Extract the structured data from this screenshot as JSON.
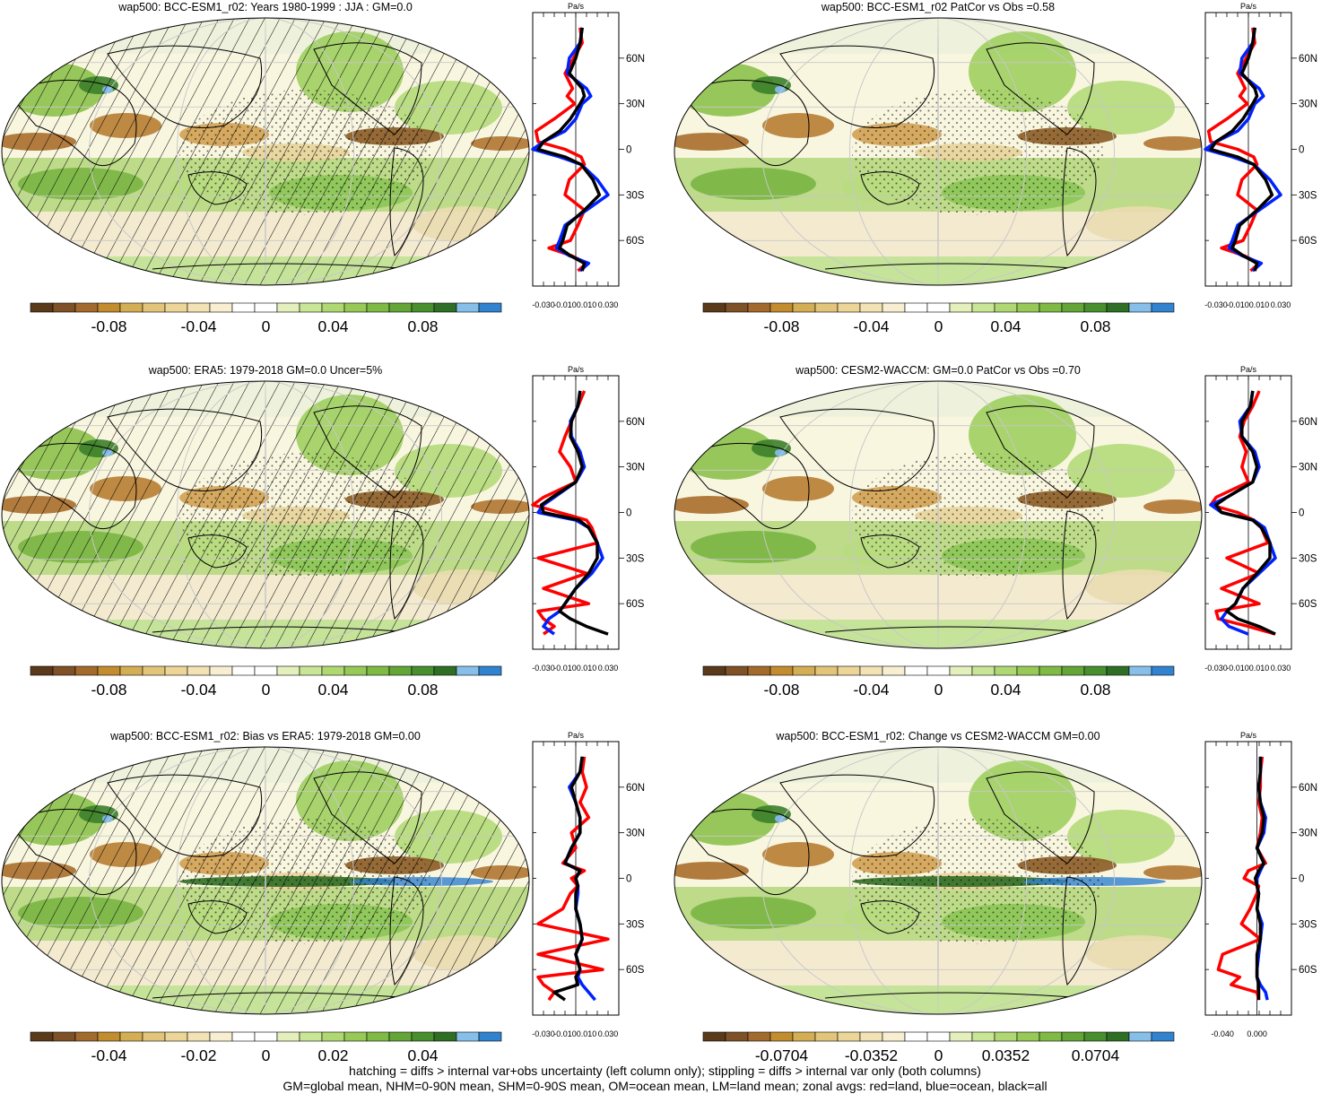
{
  "colors": {
    "scale": [
      "#5a3a1a",
      "#7e5226",
      "#a36a2e",
      "#c38c2e",
      "#d4ae55",
      "#e2c47a",
      "#ecd597",
      "#f2e2b4",
      "#f8efd3",
      "#ffffff",
      "#ffffff",
      "#e4f0bc",
      "#c9e596",
      "#b0d872",
      "#96c956",
      "#7fba44",
      "#63a637",
      "#488f2e",
      "#2f6e25",
      "#86c0ea",
      "#3182cf"
    ],
    "land_line": "#ff0000",
    "ocean_line": "#0022ff",
    "all_line": "#000000"
  },
  "zonal_axis": {
    "unit": "Pa/s",
    "lat_ticks": [
      "60N",
      "30N",
      "0",
      "30S",
      "60S"
    ]
  },
  "panels": [
    {
      "id": "model",
      "title": "wap500: BCC-ESM1_r02: Years 1980-1999 : JJA : GM=0.0",
      "hatch": true,
      "colorbar_labels": [
        "-0.08",
        "-0.04",
        "0",
        "0.04",
        "0.08"
      ],
      "zonal_ticks": [
        "-0.030",
        "-0.010",
        "0.010",
        "0.030"
      ]
    },
    {
      "id": "model-vs-obs",
      "title": "wap500: BCC-ESM1_r02 PatCor vs Obs =0.58",
      "hatch": false,
      "colorbar_labels": [
        "-0.08",
        "-0.04",
        "0",
        "0.04",
        "0.08"
      ],
      "zonal_ticks": [
        "-0.030",
        "-0.010",
        "0.010",
        "0.030"
      ]
    },
    {
      "id": "obs",
      "title": "wap500: ERA5: 1979-2018 GM=0.0 Uncer=5%",
      "hatch": true,
      "colorbar_labels": [
        "-0.08",
        "-0.04",
        "0",
        "0.04",
        "0.08"
      ],
      "zonal_ticks": [
        "-0.030",
        "-0.010",
        "0.010",
        "0.030"
      ]
    },
    {
      "id": "reference-model",
      "title": "wap500: CESM2-WACCM: GM=0.0 PatCor vs Obs =0.70",
      "hatch": false,
      "colorbar_labels": [
        "-0.08",
        "-0.04",
        "0",
        "0.04",
        "0.08"
      ],
      "zonal_ticks": [
        "-0.030",
        "-0.010",
        "0.010",
        "0.030"
      ]
    },
    {
      "id": "bias",
      "title": "wap500: BCC-ESM1_r02: Bias vs ERA5: 1979-2018 GM=0.00",
      "hatch": true,
      "colorbar_labels": [
        "-0.04",
        "-0.02",
        "0",
        "0.02",
        "0.04"
      ],
      "zonal_ticks": [
        "-0.030",
        "-0.010",
        "0.010",
        "0.030"
      ]
    },
    {
      "id": "change",
      "title": "wap500: BCC-ESM1_r02: Change vs CESM2-WACCM GM=0.00",
      "hatch": false,
      "colorbar_labels": [
        "-0.0704",
        "-0.0352",
        "0",
        "0.0352",
        "0.0704"
      ],
      "zonal_ticks": [
        "-0.040",
        "0.000"
      ]
    }
  ],
  "footer": {
    "line1": "hatching = diffs > internal var+obs uncertainty (left column only); stippling = diffs > internal var only (both columns)",
    "line2": "GM=global mean, NHM=0-90N mean, SHM=0-90S mean, OM=ocean mean, LM=land mean; zonal avgs: red=land, blue=ocean, black=all"
  },
  "chart_data": [
    {
      "type": "line",
      "title": "wap500: BCC-ESM1_r02: Years 1980-1999 : JJA : GM=0.0",
      "xlabel": "Pa/s",
      "xlim": [
        -0.04,
        0.04
      ],
      "ylim": [
        -90,
        90
      ],
      "y": [
        80,
        70,
        60,
        50,
        40,
        35,
        30,
        20,
        12,
        5,
        0,
        -5,
        -10,
        -20,
        -30,
        -40,
        -50,
        -60,
        -65,
        -70,
        -75,
        -80
      ],
      "series": [
        {
          "name": "red=land",
          "color": "#ff0000",
          "values": [
            0.004,
            0.006,
            -0.002,
            -0.01,
            -0.003,
            -0.008,
            -0.001,
            -0.02,
            -0.037,
            -0.035,
            -0.01,
            0.005,
            0.008,
            -0.006,
            -0.01,
            0.008,
            0.002,
            -0.005,
            -0.025,
            -0.004,
            0.01,
            0.002
          ]
        },
        {
          "name": "blue=ocean",
          "color": "#0022ff",
          "values": [
            0.006,
            0.004,
            -0.006,
            -0.008,
            0.01,
            0.014,
            0.006,
            0.0,
            -0.01,
            -0.03,
            -0.04,
            -0.015,
            0.005,
            0.02,
            0.03,
            0.01,
            -0.01,
            -0.015,
            -0.018,
            -0.006,
            0.012,
            0.004
          ]
        },
        {
          "name": "black=all",
          "color": "#000000",
          "values": [
            0.006,
            0.004,
            0.0,
            -0.006,
            0.006,
            0.008,
            0.004,
            -0.005,
            -0.015,
            -0.03,
            -0.035,
            -0.01,
            0.005,
            0.016,
            0.022,
            0.008,
            -0.008,
            -0.012,
            -0.015,
            -0.005,
            0.008,
            0.006
          ]
        }
      ]
    },
    {
      "type": "line",
      "title": "wap500: BCC-ESM1_r02 PatCor vs Obs =0.58",
      "xlabel": "Pa/s",
      "xlim": [
        -0.04,
        0.04
      ],
      "ylim": [
        -90,
        90
      ],
      "y": [
        80,
        70,
        60,
        50,
        40,
        35,
        30,
        20,
        12,
        5,
        0,
        -5,
        -10,
        -20,
        -30,
        -40,
        -50,
        -60,
        -65,
        -70,
        -75,
        -80
      ],
      "series": [
        {
          "name": "red=land",
          "color": "#ff0000",
          "values": [
            0.004,
            0.006,
            -0.002,
            -0.01,
            -0.003,
            -0.008,
            -0.001,
            -0.02,
            -0.037,
            -0.035,
            -0.01,
            0.005,
            0.008,
            -0.006,
            -0.01,
            0.008,
            0.002,
            -0.005,
            -0.025,
            -0.004,
            0.01,
            0.002
          ]
        },
        {
          "name": "blue=ocean",
          "color": "#0022ff",
          "values": [
            0.006,
            0.004,
            -0.006,
            -0.008,
            0.01,
            0.014,
            0.006,
            0.0,
            -0.01,
            -0.03,
            -0.04,
            -0.015,
            0.005,
            0.02,
            0.03,
            0.01,
            -0.01,
            -0.015,
            -0.018,
            -0.006,
            0.012,
            0.004
          ]
        },
        {
          "name": "black=all",
          "color": "#000000",
          "values": [
            0.006,
            0.004,
            0.0,
            -0.006,
            0.006,
            0.008,
            0.004,
            -0.005,
            -0.015,
            -0.03,
            -0.035,
            -0.01,
            0.005,
            0.016,
            0.022,
            0.008,
            -0.008,
            -0.012,
            -0.015,
            -0.005,
            0.008,
            0.006
          ]
        }
      ]
    },
    {
      "type": "line",
      "title": "wap500: ERA5: 1979-2018 GM=0.0 Uncer=5%",
      "xlabel": "Pa/s",
      "xlim": [
        -0.04,
        0.04
      ],
      "ylim": [
        -90,
        90
      ],
      "y": [
        80,
        70,
        60,
        50,
        40,
        30,
        20,
        10,
        5,
        0,
        -5,
        -10,
        -20,
        -30,
        -40,
        -50,
        -60,
        -65,
        -70,
        -75,
        -80
      ],
      "series": [
        {
          "name": "red=land",
          "color": "#ff0000",
          "values": [
            0.008,
            0.002,
            -0.004,
            -0.01,
            -0.015,
            -0.005,
            0.0,
            -0.03,
            -0.04,
            -0.015,
            0.01,
            0.015,
            0.02,
            -0.035,
            0.01,
            -0.03,
            0.012,
            -0.035,
            -0.03,
            -0.02,
            -0.03
          ]
        },
        {
          "name": "blue=ocean",
          "color": "#0022ff",
          "values": [
            0.004,
            0.002,
            -0.005,
            -0.004,
            0.004,
            0.008,
            0.0,
            -0.02,
            -0.03,
            -0.035,
            0.0,
            0.012,
            0.02,
            0.025,
            0.015,
            0.0,
            -0.01,
            -0.015,
            -0.025,
            -0.03,
            -0.02
          ]
        },
        {
          "name": "black=all",
          "color": "#000000",
          "values": [
            0.004,
            0.002,
            -0.004,
            -0.005,
            0.002,
            0.006,
            0.0,
            -0.022,
            -0.032,
            -0.03,
            0.003,
            0.012,
            0.02,
            0.02,
            0.012,
            0.0,
            -0.01,
            -0.015,
            -0.005,
            0.01,
            0.03
          ]
        }
      ]
    },
    {
      "type": "line",
      "title": "wap500: CESM2-WACCM: GM=0.0 PatCor vs Obs =0.70",
      "xlabel": "Pa/s",
      "xlim": [
        -0.04,
        0.04
      ],
      "ylim": [
        -90,
        90
      ],
      "y": [
        80,
        70,
        60,
        50,
        40,
        30,
        20,
        10,
        5,
        0,
        -5,
        -10,
        -20,
        -30,
        -40,
        -50,
        -60,
        -65,
        -70,
        -75,
        -80
      ],
      "series": [
        {
          "name": "red=land",
          "color": "#ff0000",
          "values": [
            0.01,
            0.004,
            -0.004,
            -0.008,
            -0.002,
            -0.006,
            0.0,
            -0.03,
            -0.035,
            -0.01,
            0.005,
            0.012,
            0.018,
            -0.02,
            0.01,
            -0.025,
            0.01,
            -0.03,
            -0.028,
            0.0,
            0.025
          ]
        },
        {
          "name": "blue=ocean",
          "color": "#0022ff",
          "values": [
            0.004,
            0.002,
            -0.008,
            -0.006,
            0.006,
            0.01,
            0.004,
            -0.02,
            -0.035,
            -0.025,
            0.005,
            0.015,
            0.02,
            0.025,
            0.01,
            -0.005,
            -0.012,
            -0.02,
            -0.025,
            -0.018,
            0.0
          ]
        },
        {
          "name": "black=all",
          "color": "#000000",
          "values": [
            0.004,
            0.002,
            -0.006,
            -0.006,
            0.004,
            0.008,
            0.004,
            -0.02,
            -0.03,
            -0.025,
            0.004,
            0.012,
            0.02,
            0.02,
            0.008,
            -0.005,
            -0.012,
            -0.02,
            -0.01,
            0.01,
            0.025
          ]
        }
      ]
    },
    {
      "type": "line",
      "title": "wap500: BCC-ESM1_r02: Bias vs ERA5: 1979-2018 GM=0.00",
      "xlabel": "Pa/s",
      "xlim": [
        -0.04,
        0.04
      ],
      "ylim": [
        -90,
        90
      ],
      "y": [
        80,
        70,
        60,
        50,
        40,
        30,
        20,
        10,
        5,
        0,
        -5,
        -10,
        -20,
        -30,
        -40,
        -50,
        -60,
        -65,
        -70,
        -75,
        -80
      ],
      "series": [
        {
          "name": "red=land",
          "color": "#ff0000",
          "values": [
            0.008,
            0.006,
            0.01,
            0.004,
            0.012,
            -0.004,
            0.0,
            -0.012,
            0.008,
            -0.004,
            0.002,
            -0.005,
            -0.012,
            -0.035,
            0.03,
            -0.035,
            0.025,
            -0.035,
            -0.03,
            -0.02,
            -0.025
          ]
        },
        {
          "name": "blue=ocean",
          "color": "#0022ff",
          "values": [
            0.006,
            0.004,
            -0.006,
            0.0,
            0.004,
            0.004,
            -0.004,
            -0.01,
            0.004,
            0.0,
            0.002,
            0.002,
            0.0,
            0.004,
            0.006,
            0.0,
            0.004,
            0.002,
            0.006,
            0.012,
            0.018
          ]
        },
        {
          "name": "black=all",
          "color": "#000000",
          "values": [
            0.006,
            0.004,
            -0.004,
            0.0,
            0.004,
            0.004,
            -0.004,
            -0.01,
            0.004,
            0.0,
            0.002,
            0.0,
            0.0,
            0.004,
            0.006,
            0.0,
            0.004,
            0.0,
            0.002,
            -0.02,
            -0.01
          ]
        }
      ]
    },
    {
      "type": "line",
      "title": "wap500: BCC-ESM1_r02: Change vs CESM2-WACCM GM=0.00",
      "xlabel": "Pa/s",
      "xlim": [
        -0.06,
        0.04
      ],
      "ylim": [
        -90,
        90
      ],
      "y": [
        80,
        70,
        60,
        50,
        40,
        30,
        20,
        10,
        5,
        0,
        -5,
        -10,
        -20,
        -30,
        -40,
        -50,
        -60,
        -65,
        -70,
        -75,
        -80
      ],
      "series": [
        {
          "name": "red=land",
          "color": "#ff0000",
          "values": [
            0.006,
            0.004,
            0.004,
            0.002,
            0.006,
            0.004,
            0.0,
            0.01,
            -0.01,
            -0.015,
            0.002,
            0.0,
            -0.008,
            -0.018,
            0.004,
            -0.04,
            -0.045,
            -0.02,
            -0.03,
            0.0,
            0.002
          ]
        },
        {
          "name": "blue=ocean",
          "color": "#0022ff",
          "values": [
            0.004,
            0.004,
            0.002,
            0.004,
            0.01,
            0.008,
            0.0,
            0.008,
            0.004,
            0.0,
            0.0,
            0.002,
            0.0,
            0.006,
            0.004,
            0.002,
            0.0,
            0.0,
            0.004,
            0.01,
            0.012
          ]
        },
        {
          "name": "black=all",
          "color": "#000000",
          "values": [
            0.004,
            0.004,
            0.002,
            0.004,
            0.008,
            0.006,
            0.0,
            0.008,
            0.002,
            -0.002,
            0.0,
            0.002,
            0.0,
            0.004,
            0.004,
            0.0,
            0.0,
            0.0,
            0.002,
            0.002,
            0.002
          ]
        }
      ]
    }
  ]
}
